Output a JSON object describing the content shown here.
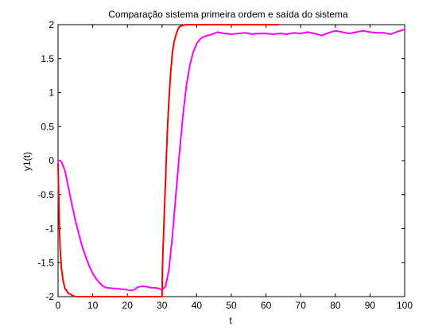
{
  "chart_data": {
    "type": "line",
    "title": "Comparação sistema primeira ordem e saída do sistema",
    "xlabel": "t",
    "ylabel": "y1(t)",
    "xlim": [
      0,
      100
    ],
    "ylim": [
      -2,
      2
    ],
    "xticks": [
      0,
      10,
      20,
      30,
      40,
      50,
      60,
      70,
      80,
      90,
      100
    ],
    "yticks": [
      -2,
      -1.5,
      -1,
      -0.5,
      0,
      0.5,
      1,
      1.5,
      2
    ],
    "xtick_labels": [
      "0",
      "10",
      "20",
      "30",
      "40",
      "50",
      "60",
      "70",
      "80",
      "90",
      "100"
    ],
    "ytick_labels": [
      "-2",
      "-1.5",
      "-1",
      "-0.5",
      "0",
      "0.5",
      "1",
      "1.5",
      "2"
    ],
    "grid": false,
    "legend": "none",
    "series": [
      {
        "color": "#ff00ff",
        "points": [
          [
            0,
            0
          ],
          [
            0.5,
            0
          ],
          [
            1,
            -0.02
          ],
          [
            2,
            -0.15
          ],
          [
            3,
            -0.4
          ],
          [
            4,
            -0.65
          ],
          [
            5,
            -0.88
          ],
          [
            6,
            -1.08
          ],
          [
            7,
            -1.27
          ],
          [
            8,
            -1.42
          ],
          [
            9,
            -1.55
          ],
          [
            10,
            -1.66
          ],
          [
            11,
            -1.74
          ],
          [
            12,
            -1.8
          ],
          [
            13,
            -1.85
          ],
          [
            14,
            -1.87
          ],
          [
            15,
            -1.875
          ],
          [
            16,
            -1.88
          ],
          [
            17,
            -1.88
          ],
          [
            18,
            -1.89
          ],
          [
            19,
            -1.89
          ],
          [
            20,
            -1.9
          ],
          [
            21,
            -1.91
          ],
          [
            22,
            -1.9
          ],
          [
            23,
            -1.86
          ],
          [
            24,
            -1.85
          ],
          [
            25,
            -1.85
          ],
          [
            26,
            -1.86
          ],
          [
            27,
            -1.87
          ],
          [
            28,
            -1.87
          ],
          [
            29,
            -1.88
          ],
          [
            30,
            -1.9
          ],
          [
            31,
            -1.85
          ],
          [
            32,
            -1.6
          ],
          [
            33,
            -1.1
          ],
          [
            34,
            -0.5
          ],
          [
            35,
            0.1
          ],
          [
            36,
            0.65
          ],
          [
            37,
            1.1
          ],
          [
            38,
            1.4
          ],
          [
            39,
            1.6
          ],
          [
            40,
            1.72
          ],
          [
            41,
            1.79
          ],
          [
            42,
            1.82
          ],
          [
            43,
            1.84
          ],
          [
            44,
            1.85
          ],
          [
            45,
            1.87
          ],
          [
            46,
            1.89
          ],
          [
            47,
            1.88
          ],
          [
            48,
            1.87
          ],
          [
            50,
            1.86
          ],
          [
            52,
            1.87
          ],
          [
            54,
            1.88
          ],
          [
            56,
            1.86
          ],
          [
            58,
            1.87
          ],
          [
            60,
            1.87
          ],
          [
            62,
            1.86
          ],
          [
            64,
            1.87
          ],
          [
            66,
            1.86
          ],
          [
            68,
            1.88
          ],
          [
            70,
            1.87
          ],
          [
            72,
            1.89
          ],
          [
            74,
            1.87
          ],
          [
            76,
            1.84
          ],
          [
            78,
            1.88
          ],
          [
            80,
            1.91
          ],
          [
            82,
            1.89
          ],
          [
            84,
            1.87
          ],
          [
            86,
            1.89
          ],
          [
            88,
            1.91
          ],
          [
            90,
            1.89
          ],
          [
            92,
            1.88
          ],
          [
            94,
            1.88
          ],
          [
            96,
            1.86
          ],
          [
            98,
            1.9
          ],
          [
            100,
            1.93
          ]
        ]
      },
      {
        "color": "#ff0000",
        "points": [
          [
            0,
            -0.05
          ],
          [
            0.3,
            -0.8
          ],
          [
            0.6,
            -1.3
          ],
          [
            1,
            -1.6
          ],
          [
            1.5,
            -1.78
          ],
          [
            2,
            -1.88
          ],
          [
            3,
            -1.95
          ],
          [
            4,
            -1.98
          ],
          [
            5,
            -2
          ],
          [
            30,
            -2
          ],
          [
            30.1,
            -1.6
          ],
          [
            30.5,
            -1.0
          ],
          [
            31,
            -0.3
          ],
          [
            31.5,
            0.4
          ],
          [
            32,
            0.9
          ],
          [
            32.5,
            1.3
          ],
          [
            33,
            1.6
          ],
          [
            33.5,
            1.75
          ],
          [
            34,
            1.85
          ],
          [
            34.5,
            1.92
          ],
          [
            35,
            1.97
          ],
          [
            36,
            1.99
          ],
          [
            37,
            2.0
          ],
          [
            63.5,
            2.0
          ]
        ]
      }
    ]
  }
}
